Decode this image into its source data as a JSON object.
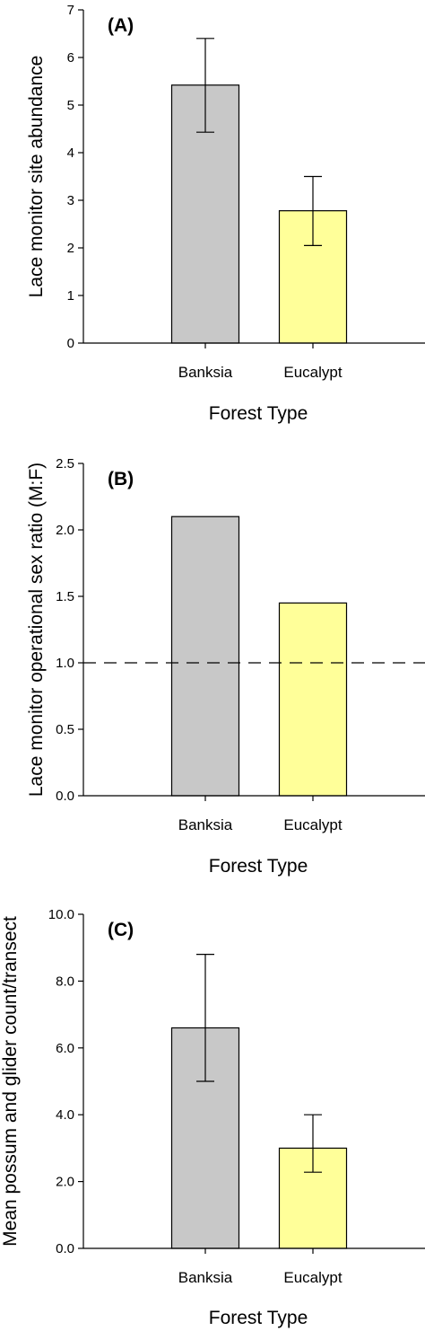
{
  "chart_data": [
    {
      "type": "bar",
      "panel_label": "(A)",
      "categories": [
        "Banksia",
        "Eucalypt"
      ],
      "values": [
        5.42,
        2.78
      ],
      "error_upper": [
        6.4,
        3.5
      ],
      "error_lower": [
        4.43,
        2.05
      ],
      "colors": [
        "#c8c8c8",
        "#ffff99"
      ],
      "xlabel": "Forest Type",
      "ylabel": "Lace monitor site abundance",
      "ylim": [
        0,
        7
      ],
      "yticks": [
        "0",
        "1",
        "2",
        "3",
        "4",
        "5",
        "6",
        "7"
      ],
      "reference_line": null
    },
    {
      "type": "bar",
      "panel_label": "(B)",
      "categories": [
        "Banksia",
        "Eucalypt"
      ],
      "values": [
        2.1,
        1.45
      ],
      "error_upper": null,
      "error_lower": null,
      "colors": [
        "#c8c8c8",
        "#ffff99"
      ],
      "xlabel": "Forest Type",
      "ylabel": "Lace monitor operational sex ratio (M:F)",
      "ylim": [
        0,
        2.5
      ],
      "yticks": [
        "0.0",
        "0.5",
        "1.0",
        "1.5",
        "2.0",
        "2.5"
      ],
      "reference_line": 1.0
    },
    {
      "type": "bar",
      "panel_label": "(C)",
      "categories": [
        "Banksia",
        "Eucalypt"
      ],
      "values": [
        6.6,
        3.0
      ],
      "error_upper": [
        8.8,
        4.0
      ],
      "error_lower": [
        5.0,
        2.28
      ],
      "colors": [
        "#c8c8c8",
        "#ffff99"
      ],
      "xlabel": "Forest Type",
      "ylabel": "Mean possum and glider count/transect",
      "ylim": [
        0,
        10
      ],
      "yticks": [
        "0.0",
        "2.0",
        "4.0",
        "6.0",
        "8.0",
        "10.0"
      ],
      "reference_line": null
    }
  ]
}
